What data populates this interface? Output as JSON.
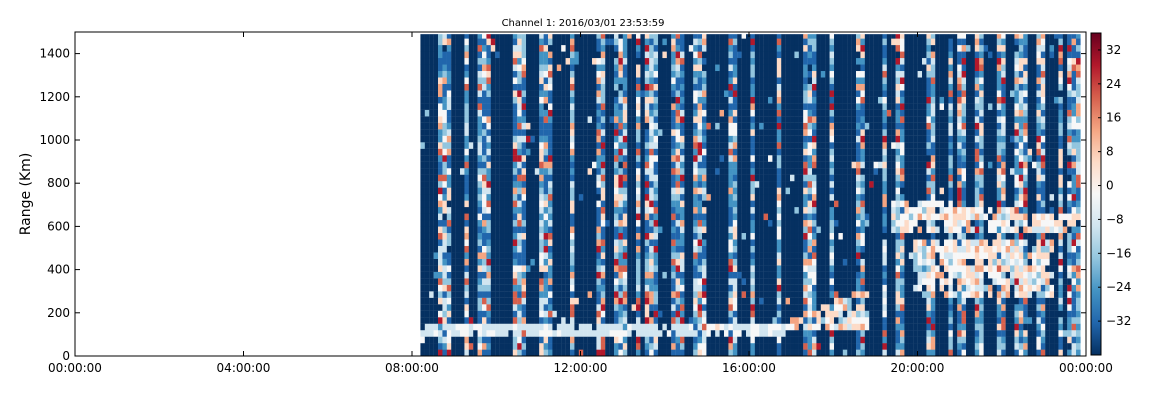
{
  "chart_data": {
    "type": "heatmap",
    "title": "Channel 1: 2016/03/01 23:53:59",
    "xlabel": "",
    "ylabel": "Range (Km)",
    "x_ticks": [
      "00:00:00",
      "04:00:00",
      "08:00:00",
      "12:00:00",
      "16:00:00",
      "20:00:00",
      "00:00:00"
    ],
    "x_range_hours": [
      0,
      24
    ],
    "y_ticks": [
      0,
      200,
      400,
      600,
      800,
      1000,
      1200,
      1400
    ],
    "ylim": [
      0,
      1500
    ],
    "colorbar": {
      "ticks": [
        32,
        24,
        16,
        8,
        0,
        -8,
        -16,
        -24,
        -32
      ],
      "range": [
        -40,
        36
      ],
      "colormap": "RdBu_r"
    },
    "data_start_hour": 8.2,
    "data_end_hour": 23.9,
    "noise_band_km": [
      90,
      130
    ],
    "colors": {
      "deep_blue": "#053061",
      "blue": "#2166ac",
      "mid_blue": "#4393c3",
      "light_blue": "#92c5de",
      "pale_blue": "#d1e5f0",
      "white": "#f7f7f7",
      "pale_red": "#fddbc7",
      "light_red": "#f4a582",
      "red": "#d6604d",
      "deep_red": "#b2182b",
      "darkest_red": "#67001f"
    }
  }
}
